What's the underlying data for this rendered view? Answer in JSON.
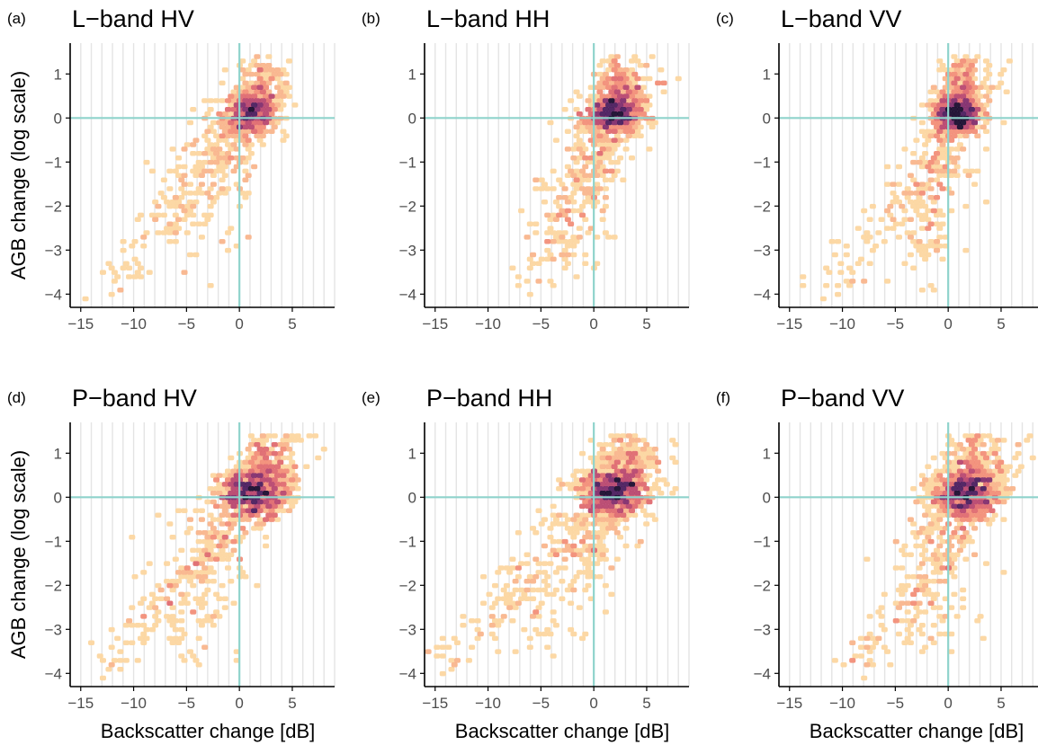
{
  "figure": {
    "shared_ylabel": "AGB change (log scale)",
    "shared_xlabel": "Backscatter change [dB]"
  },
  "colors": {
    "reference_line": "#8fd3cc",
    "grid": "#e4e4e4",
    "axis": "#000000",
    "tick_label": "#4d4d4d",
    "density_scale": [
      "#fdeeb5",
      "#fcd6a0",
      "#f9b58c",
      "#f28e78",
      "#df6a70",
      "#b8476f",
      "#822d6d",
      "#4b1d5e",
      "#1a0c2e"
    ]
  },
  "chart_data": [
    {
      "type": "heatmap",
      "panel_tag": "(a)",
      "title": "L−band HV",
      "xlabel": "",
      "ylabel": "AGB change (log scale)",
      "xlim": [
        -16,
        9
      ],
      "ylim": [
        -4.3,
        1.7
      ],
      "xticks": [
        -15,
        -10,
        -5,
        0,
        5
      ],
      "yticks": [
        -4,
        -3,
        -2,
        -1,
        0,
        1
      ],
      "xtick_labels": [
        "−15",
        "−10",
        "−5",
        "0",
        "5"
      ],
      "ytick_labels": [
        "−4",
        "−3",
        "−2",
        "−1",
        "0",
        "1"
      ],
      "reference_lines": {
        "x": 0,
        "y": 0
      },
      "center": [
        1,
        0.1
      ],
      "clusters": [
        {
          "x": 1,
          "y": 0.1,
          "sx": 1.3,
          "sy": 0.25,
          "n": 600
        },
        {
          "x": 2,
          "y": 0.7,
          "sx": 1.2,
          "sy": 0.4,
          "n": 160
        },
        {
          "x": -1.5,
          "y": -0.8,
          "sx": 1.6,
          "sy": 0.5,
          "n": 110
        },
        {
          "x": -4,
          "y": -2,
          "sx": 2.2,
          "sy": 0.7,
          "n": 80
        }
      ],
      "tail": {
        "x": [
          -12,
          4.5
        ],
        "y": [
          -3.9,
          1.4
        ]
      }
    },
    {
      "type": "heatmap",
      "panel_tag": "(b)",
      "title": "L−band HH",
      "xlabel": "",
      "ylabel": "",
      "xlim": [
        -16,
        9
      ],
      "ylim": [
        -4.3,
        1.7
      ],
      "xticks": [
        -15,
        -10,
        -5,
        0,
        5
      ],
      "yticks": [
        -4,
        -3,
        -2,
        -1,
        0,
        1
      ],
      "xtick_labels": [
        "−15",
        "−10",
        "−5",
        "0",
        "5"
      ],
      "ytick_labels": [
        "−4",
        "−3",
        "−2",
        "−1",
        "0",
        "1"
      ],
      "reference_lines": {
        "x": 0,
        "y": 0
      },
      "center": [
        1.8,
        0.1
      ],
      "clusters": [
        {
          "x": 1.8,
          "y": 0.1,
          "sx": 1.3,
          "sy": 0.25,
          "n": 600
        },
        {
          "x": 2.4,
          "y": 0.8,
          "sx": 1.1,
          "sy": 0.4,
          "n": 170
        },
        {
          "x": -0.5,
          "y": -0.9,
          "sx": 1.5,
          "sy": 0.5,
          "n": 110
        },
        {
          "x": -2.5,
          "y": -2.3,
          "sx": 1.8,
          "sy": 0.7,
          "n": 80
        }
      ],
      "tail": {
        "x": [
          -6,
          6
        ],
        "y": [
          -3.9,
          1.4
        ]
      }
    },
    {
      "type": "heatmap",
      "panel_tag": "(c)",
      "title": "L−band VV",
      "xlabel": "",
      "ylabel": "",
      "xlim": [
        -16,
        9
      ],
      "ylim": [
        -4.3,
        1.7
      ],
      "xticks": [
        -15,
        -10,
        -5,
        0,
        5
      ],
      "yticks": [
        -4,
        -3,
        -2,
        -1,
        0,
        1
      ],
      "xtick_labels": [
        "−15",
        "−10",
        "−5",
        "0",
        "5"
      ],
      "ytick_labels": [
        "−4",
        "−3",
        "−2",
        "−1",
        "0",
        "1"
      ],
      "reference_lines": {
        "x": 0,
        "y": 0
      },
      "center": [
        0.8,
        0.1
      ],
      "clusters": [
        {
          "x": 0.8,
          "y": 0.1,
          "sx": 1.1,
          "sy": 0.25,
          "n": 600
        },
        {
          "x": 1.2,
          "y": 0.8,
          "sx": 1.1,
          "sy": 0.4,
          "n": 160
        },
        {
          "x": -0.8,
          "y": -1.0,
          "sx": 1.4,
          "sy": 0.5,
          "n": 110
        },
        {
          "x": -2.2,
          "y": -2.5,
          "sx": 1.5,
          "sy": 0.6,
          "n": 80
        }
      ],
      "tail": {
        "x": [
          -11,
          5
        ],
        "y": [
          -3.9,
          1.4
        ]
      }
    },
    {
      "type": "heatmap",
      "panel_tag": "(d)",
      "title": "P−band HV",
      "xlabel": "Backscatter change [dB]",
      "ylabel": "AGB change (log scale)",
      "xlim": [
        -16,
        9
      ],
      "ylim": [
        -4.3,
        1.7
      ],
      "xticks": [
        -15,
        -10,
        -5,
        0,
        5
      ],
      "yticks": [
        -4,
        -3,
        -2,
        -1,
        0,
        1
      ],
      "xtick_labels": [
        "−15",
        "−10",
        "−5",
        "0",
        "5"
      ],
      "ytick_labels": [
        "−4",
        "−3",
        "−2",
        "−1",
        "0",
        "1"
      ],
      "reference_lines": {
        "x": 0,
        "y": 0
      },
      "center": [
        1.2,
        0.1
      ],
      "clusters": [
        {
          "x": 1.2,
          "y": 0.1,
          "sx": 1.6,
          "sy": 0.28,
          "n": 650
        },
        {
          "x": 2.5,
          "y": 0.8,
          "sx": 1.4,
          "sy": 0.4,
          "n": 180
        },
        {
          "x": -2,
          "y": -1.0,
          "sx": 2.0,
          "sy": 0.5,
          "n": 110
        },
        {
          "x": -5,
          "y": -2.4,
          "sx": 2.5,
          "sy": 0.7,
          "n": 90
        }
      ],
      "tail": {
        "x": [
          -13,
          7
        ],
        "y": [
          -3.9,
          1.4
        ]
      }
    },
    {
      "type": "heatmap",
      "panel_tag": "(e)",
      "title": "P−band HH",
      "xlabel": "Backscatter change [dB]",
      "ylabel": "",
      "xlim": [
        -16,
        9
      ],
      "ylim": [
        -4.3,
        1.7
      ],
      "xticks": [
        -15,
        -10,
        -5,
        0,
        5
      ],
      "yticks": [
        -4,
        -3,
        -2,
        -1,
        0,
        1
      ],
      "xtick_labels": [
        "−15",
        "−10",
        "−5",
        "0",
        "5"
      ],
      "ytick_labels": [
        "−4",
        "−3",
        "−2",
        "−1",
        "0",
        "1"
      ],
      "reference_lines": {
        "x": 0,
        "y": 0
      },
      "center": [
        1.8,
        0.1
      ],
      "clusters": [
        {
          "x": 1.8,
          "y": 0.1,
          "sx": 1.6,
          "sy": 0.28,
          "n": 650
        },
        {
          "x": 3,
          "y": 0.8,
          "sx": 1.5,
          "sy": 0.4,
          "n": 180
        },
        {
          "x": -1.5,
          "y": -1.0,
          "sx": 2.2,
          "sy": 0.5,
          "n": 110
        },
        {
          "x": -5,
          "y": -2.4,
          "sx": 3.0,
          "sy": 0.7,
          "n": 90
        }
      ],
      "tail": {
        "x": [
          -15,
          8
        ],
        "y": [
          -3.9,
          1.4
        ]
      }
    },
    {
      "type": "heatmap",
      "panel_tag": "(f)",
      "title": "P−band VV",
      "xlabel": "Backscatter change [dB]",
      "ylabel": "",
      "xlim": [
        -16,
        9
      ],
      "ylim": [
        -4.3,
        1.7
      ],
      "xticks": [
        -15,
        -10,
        -5,
        0,
        5
      ],
      "yticks": [
        -4,
        -3,
        -2,
        -1,
        0,
        1
      ],
      "xtick_labels": [
        "−15",
        "−10",
        "−5",
        "0",
        "5"
      ],
      "ytick_labels": [
        "−4",
        "−3",
        "−2",
        "−1",
        "0",
        "1"
      ],
      "reference_lines": {
        "x": 0,
        "y": 0
      },
      "center": [
        1.5,
        0.1
      ],
      "clusters": [
        {
          "x": 1.5,
          "y": 0.1,
          "sx": 1.6,
          "sy": 0.28,
          "n": 650
        },
        {
          "x": 2.5,
          "y": 0.8,
          "sx": 1.4,
          "sy": 0.4,
          "n": 180
        },
        {
          "x": -0.5,
          "y": -1.0,
          "sx": 1.8,
          "sy": 0.5,
          "n": 110
        },
        {
          "x": -2.5,
          "y": -2.5,
          "sx": 2.0,
          "sy": 0.7,
          "n": 85
        }
      ],
      "tail": {
        "x": [
          -9,
          8
        ],
        "y": [
          -3.9,
          1.4
        ]
      }
    }
  ]
}
